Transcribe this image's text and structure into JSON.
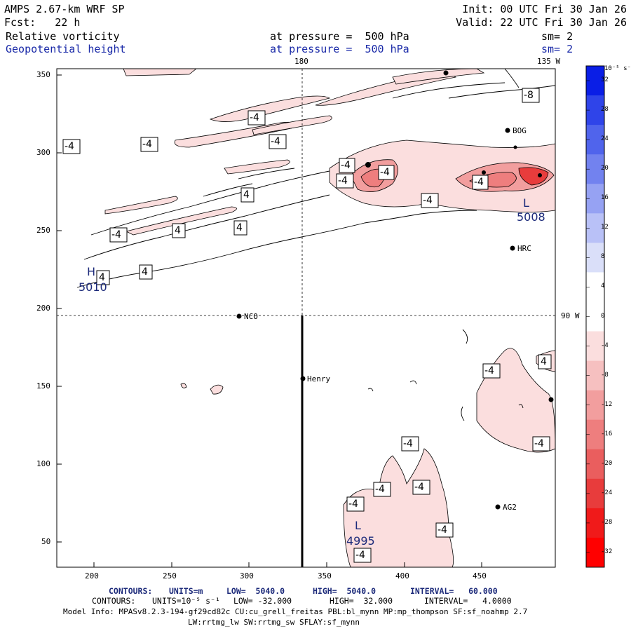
{
  "header": {
    "model_title": "AMPS 2.67-km WRF SP",
    "forecast": "Fcst:   22 h",
    "init": "Init: 00 UTC Fri 30 Jan 26",
    "valid": "Valid: 22 UTC Fri 30 Jan 26",
    "field1_name": "Relative vorticity",
    "field1_level": "at pressure =  500 hPa",
    "field1_smooth": "sm= 2",
    "field2_name": "Geopotential height",
    "field2_level": "at pressure =  500 hPa",
    "field2_smooth": "sm= 2"
  },
  "map": {
    "meridian_top_label": "180",
    "meridian_135_label": "135 W",
    "parallel_label": "90 W",
    "x_ticks": [
      "200",
      "250",
      "300",
      "350",
      "400",
      "450"
    ],
    "y_ticks": [
      "350",
      "300",
      "250",
      "200",
      "150",
      "100",
      "50"
    ],
    "stations": [
      "BOG",
      "HRC",
      "NCO",
      "Henry",
      "AG2"
    ],
    "height_centers": [
      {
        "type": "H",
        "value": "5010"
      },
      {
        "type": "L",
        "value": "5008"
      },
      {
        "type": "L",
        "value": "4995"
      }
    ],
    "contour_labels": [
      "-4",
      "-4",
      "-4",
      "-4",
      "-4",
      "-4",
      "-8",
      "-4",
      "-4",
      "4",
      "4",
      "4",
      "4",
      "4",
      "-4",
      "-4",
      "4",
      "-4",
      "-4",
      "-4",
      "-4",
      "-4",
      "-4",
      "-4",
      "-4"
    ]
  },
  "colorbar": {
    "unit": "10⁻⁵ s⁻¹",
    "ticks": [
      "32",
      "28",
      "24",
      "20",
      "16",
      "12",
      "8",
      "4",
      "0",
      "-4",
      "-8",
      "-12",
      "-16",
      "-20",
      "-24",
      "-28",
      "-32"
    ],
    "colors_top_to_bottom": [
      "#0a1ee6",
      "#2f44e9",
      "#5064ec",
      "#7282ef",
      "#96a2f3",
      "#b9c1f7",
      "#dadff9",
      "#ffffff",
      "#ffffff",
      "#fbdede",
      "#f6c0c0",
      "#f29e9e",
      "#ee7e7e",
      "#ea5e5e",
      "#e83c3c",
      "#f01a1a",
      "#ff0000"
    ]
  },
  "footer": {
    "contours1_label": "CONTOURS:",
    "contours1_units": "UNITS=m",
    "contours1_low": "LOW=  5040.0",
    "contours1_high": "HIGH=  5040.0",
    "contours1_interval": "INTERVAL=   60.000",
    "contours2_label": "CONTOURS:",
    "contours2_units": "UNITS=10⁻⁵ s⁻¹",
    "contours2_low": "LOW= -32.000",
    "contours2_high": "HIGH=  32.000",
    "contours2_interval": "INTERVAL=   4.0000",
    "model_info": "Model Info: MPASv8.2.3-194-gf29cd82c CU:cu_grell_freitas PBL:bl_mynn MP:mp_thompson SF:sf_noahmp 2.7",
    "model_info2": "LW:rrtmg_lw SW:rrtmg_sw SFLAY:sf_mynn"
  }
}
